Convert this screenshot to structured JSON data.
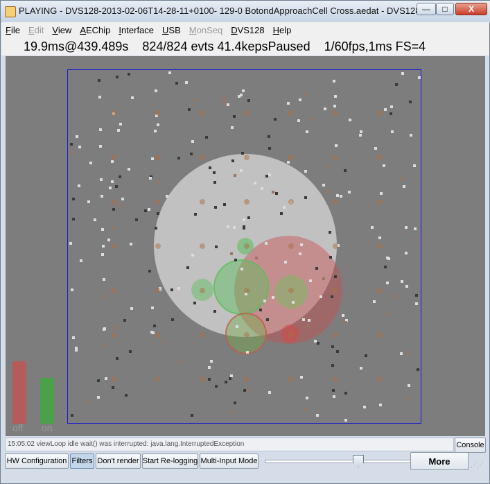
{
  "window": {
    "title": "PLAYING - DVS128-2013-02-06T14-28-11+0100- 129-0 BotondApproachCell Cross.aedat - DVS128 - AE...",
    "controls": {
      "minimize": "—",
      "maximize": "□",
      "close": "X"
    }
  },
  "menu": [
    {
      "label": "File",
      "underline": "F",
      "enabled": true
    },
    {
      "label": "Edit",
      "underline": "E",
      "enabled": false
    },
    {
      "label": "View",
      "underline": "V",
      "enabled": true
    },
    {
      "label": "AEChip",
      "underline": "A",
      "enabled": true
    },
    {
      "label": "Interface",
      "underline": "I",
      "enabled": true
    },
    {
      "label": "USB",
      "underline": "U",
      "enabled": true
    },
    {
      "label": "MonSeq",
      "underline": "M",
      "enabled": false
    },
    {
      "label": "DVS128",
      "underline": "D",
      "enabled": true
    },
    {
      "label": "Help",
      "underline": "H",
      "enabled": true
    }
  ],
  "status": {
    "timeslice": "19.9ms@439.489s",
    "events": "824/824  evts 41.4kepsPaused",
    "fps": "1/60fps,1ms FS=4"
  },
  "viewer": {
    "off_label": "off",
    "on_label": "on",
    "off_level": 0.65,
    "on_level": 0.48,
    "colors": {
      "background": "#7d7d7d",
      "rect": "#1a1ad0",
      "off": "#b55b5b",
      "on": "#4aa14a"
    }
  },
  "log": {
    "text": "15:05:02 viewLoop idle wait() was interrupted: java.lang.InterruptedException"
  },
  "console_label": "Console",
  "toolbar": {
    "buttons": [
      "HW Configuration",
      "Filters",
      "Don't render",
      "Start Re-logging",
      "Multi-Input Mode"
    ],
    "active": "Filters",
    "playback_position": 0.6,
    "more_label": "More"
  }
}
